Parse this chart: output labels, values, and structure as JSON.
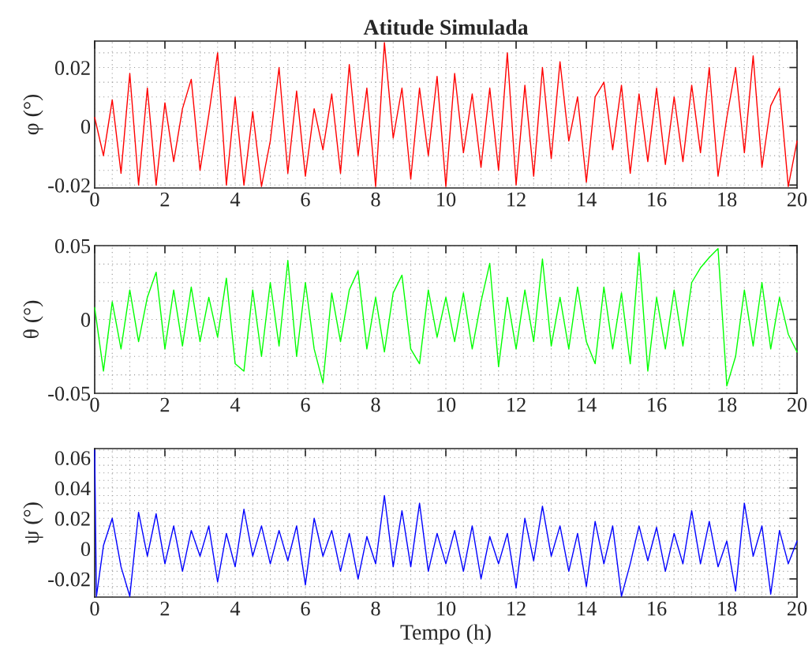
{
  "chart_data": [
    {
      "type": "line",
      "title": "Atitude Simulada",
      "ylabel": "φ (°)",
      "x": [
        0,
        0.25,
        0.5,
        0.75,
        1,
        1.25,
        1.5,
        1.75,
        2,
        2.25,
        2.5,
        2.75,
        3,
        3.25,
        3.5,
        3.75,
        4,
        4.25,
        4.5,
        4.75,
        5,
        5.25,
        5.5,
        5.75,
        6,
        6.25,
        6.5,
        6.75,
        7,
        7.25,
        7.5,
        7.75,
        8,
        8.25,
        8.5,
        8.75,
        9,
        9.25,
        9.5,
        9.75,
        10,
        10.25,
        10.5,
        10.75,
        11,
        11.25,
        11.5,
        11.75,
        12,
        12.25,
        12.5,
        12.75,
        13,
        13.25,
        13.5,
        13.75,
        14,
        14.25,
        14.5,
        14.75,
        15,
        15.25,
        15.5,
        15.75,
        16,
        16.25,
        16.5,
        16.75,
        17,
        17.25,
        17.5,
        17.75,
        18,
        18.25,
        18.5,
        18.75,
        19,
        19.25,
        19.5,
        19.75,
        20
      ],
      "series": [
        {
          "color": "#ff0000",
          "values": [
            0.003,
            -0.01,
            0.009,
            -0.016,
            0.018,
            -0.02,
            0.013,
            -0.02,
            0.008,
            -0.012,
            0.006,
            0.016,
            -0.015,
            0.004,
            0.025,
            -0.02,
            0.01,
            -0.02,
            0.005,
            -0.0205,
            -0.005,
            0.02,
            -0.016,
            0.012,
            -0.017,
            0.006,
            -0.008,
            0.011,
            -0.016,
            0.021,
            -0.01,
            0.013,
            -0.0205,
            0.0285,
            -0.004,
            0.013,
            -0.018,
            0.013,
            -0.01,
            0.017,
            -0.0205,
            0.018,
            -0.009,
            0.011,
            -0.014,
            0.013,
            -0.015,
            0.025,
            -0.02,
            0.014,
            -0.017,
            0.02,
            -0.011,
            0.022,
            -0.005,
            0.01,
            -0.019,
            0.01,
            0.015,
            -0.008,
            0.014,
            -0.016,
            0.011,
            -0.012,
            0.013,
            -0.013,
            0.01,
            -0.012,
            0.014,
            -0.009,
            0.02,
            -0.017,
            0.003,
            0.02,
            -0.009,
            0.024,
            -0.014,
            0.007,
            0.013,
            -0.0205,
            -0.005
          ]
        }
      ],
      "xlim": [
        0,
        20
      ],
      "xticks": [
        0,
        2,
        4,
        6,
        8,
        10,
        12,
        14,
        16,
        18,
        20
      ],
      "ylim": [
        -0.021,
        0.029
      ],
      "yticks": [
        -0.02,
        0,
        0.02
      ],
      "grid": true
    },
    {
      "type": "line",
      "ylabel": "θ (°)",
      "x": [
        0,
        0.25,
        0.5,
        0.75,
        1,
        1.25,
        1.5,
        1.75,
        2,
        2.25,
        2.5,
        2.75,
        3,
        3.25,
        3.5,
        3.75,
        4,
        4.25,
        4.5,
        4.75,
        5,
        5.25,
        5.5,
        5.75,
        6,
        6.25,
        6.5,
        6.75,
        7,
        7.25,
        7.5,
        7.75,
        8,
        8.25,
        8.5,
        8.75,
        9,
        9.25,
        9.5,
        9.75,
        10,
        10.25,
        10.5,
        10.75,
        11,
        11.25,
        11.5,
        11.75,
        12,
        12.25,
        12.5,
        12.75,
        13,
        13.25,
        13.5,
        13.75,
        14,
        14.25,
        14.5,
        14.75,
        15,
        15.25,
        15.5,
        15.75,
        16,
        16.25,
        16.5,
        16.75,
        17,
        17.25,
        17.5,
        17.75,
        18,
        18.25,
        18.5,
        18.75,
        19,
        19.25,
        19.5,
        19.75,
        20
      ],
      "series": [
        {
          "color": "#00ff00",
          "values": [
            0.008,
            -0.035,
            0.012,
            -0.02,
            0.02,
            -0.015,
            0.015,
            0.032,
            -0.02,
            0.02,
            -0.018,
            0.022,
            -0.015,
            0.015,
            -0.012,
            0.028,
            -0.03,
            -0.035,
            0.02,
            -0.025,
            0.025,
            -0.018,
            0.04,
            -0.025,
            0.025,
            -0.02,
            -0.043,
            0.018,
            -0.015,
            0.02,
            0.033,
            -0.02,
            0.015,
            -0.022,
            0.018,
            0.03,
            -0.02,
            -0.03,
            0.02,
            -0.012,
            0.015,
            -0.015,
            0.018,
            -0.02,
            0.012,
            0.038,
            -0.032,
            0.015,
            -0.02,
            0.02,
            -0.015,
            0.041,
            -0.018,
            0.015,
            -0.02,
            0.022,
            -0.015,
            -0.03,
            0.022,
            -0.02,
            0.018,
            -0.03,
            0.045,
            -0.035,
            0.015,
            -0.02,
            0.02,
            -0.018,
            0.025,
            0.035,
            0.042,
            0.048,
            -0.045,
            -0.025,
            0.02,
            -0.018,
            0.025,
            -0.02,
            0.015,
            -0.01,
            -0.022
          ]
        }
      ],
      "xlim": [
        0,
        20
      ],
      "xticks": [
        0,
        2,
        4,
        6,
        8,
        10,
        12,
        14,
        16,
        18,
        20
      ],
      "ylim": [
        -0.05,
        0.05
      ],
      "yticks": [
        -0.05,
        0,
        0.05
      ],
      "grid": true
    },
    {
      "type": "line",
      "ylabel": "ψ (°)",
      "xlabel": "Tempo (h)",
      "x": [
        0,
        0.05,
        0.25,
        0.5,
        0.75,
        1,
        1.25,
        1.5,
        1.75,
        2,
        2.25,
        2.5,
        2.75,
        3,
        3.25,
        3.5,
        3.75,
        4,
        4.25,
        4.5,
        4.75,
        5,
        5.25,
        5.5,
        5.75,
        6,
        6.25,
        6.5,
        6.75,
        7,
        7.25,
        7.5,
        7.75,
        8,
        8.25,
        8.5,
        8.75,
        9,
        9.25,
        9.5,
        9.75,
        10,
        10.25,
        10.5,
        10.75,
        11,
        11.25,
        11.5,
        11.75,
        12,
        12.25,
        12.5,
        12.75,
        13,
        13.25,
        13.5,
        13.75,
        14,
        14.25,
        14.5,
        14.75,
        15,
        15.25,
        15.5,
        15.75,
        16,
        16.25,
        16.5,
        16.75,
        17,
        17.25,
        17.5,
        17.75,
        18,
        18.25,
        18.5,
        18.75,
        19,
        19.25,
        19.5,
        19.75,
        20
      ],
      "series": [
        {
          "color": "#0000ff",
          "values": [
            0.065,
            -0.0315,
            0.002,
            0.02,
            -0.012,
            -0.0315,
            0.024,
            -0.005,
            0.023,
            -0.01,
            0.015,
            -0.015,
            0.012,
            -0.005,
            0.015,
            -0.022,
            0.01,
            -0.012,
            0.026,
            -0.005,
            0.015,
            -0.01,
            0.012,
            -0.008,
            0.015,
            -0.024,
            0.02,
            -0.005,
            0.012,
            -0.015,
            0.01,
            -0.02,
            0.008,
            -0.01,
            0.035,
            -0.012,
            0.025,
            -0.012,
            0.03,
            -0.015,
            0.01,
            -0.01,
            0.012,
            -0.015,
            0.015,
            -0.02,
            0.008,
            -0.01,
            0.01,
            -0.026,
            0.02,
            -0.008,
            0.028,
            -0.005,
            0.015,
            -0.015,
            0.01,
            -0.025,
            0.018,
            -0.01,
            0.015,
            -0.0315,
            -0.01,
            0.015,
            -0.008,
            0.014,
            -0.015,
            0.01,
            -0.01,
            0.025,
            -0.01,
            0.018,
            -0.012,
            0.005,
            -0.028,
            0.03,
            -0.005,
            0.015,
            -0.03,
            0.012,
            -0.01,
            0.005
          ]
        }
      ],
      "xlim": [
        0,
        20
      ],
      "xticks": [
        0,
        2,
        4,
        6,
        8,
        10,
        12,
        14,
        16,
        18,
        20
      ],
      "ylim": [
        -0.032,
        0.066
      ],
      "yticks": [
        -0.02,
        0,
        0.02,
        0.04,
        0.06
      ],
      "grid": true
    }
  ]
}
